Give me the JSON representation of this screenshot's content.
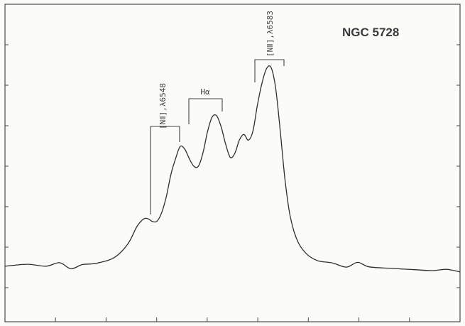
{
  "chart_data": {
    "type": "line",
    "title": "NGC 5728",
    "xlabel": "",
    "ylabel": "",
    "grid": false,
    "legend": "none",
    "axis_ticks": "unlabeled",
    "xlim": [
      0,
      100
    ],
    "ylim": [
      0,
      100
    ],
    "series": [
      {
        "values_note": "",
        "x": [
          0,
          5,
          9,
          12,
          14.5,
          17,
          20,
          24,
          27,
          29,
          30.5,
          31.5,
          32.5,
          33.5,
          34.5,
          35.5,
          36.5,
          37.5,
          38.5,
          39.5,
          40.5,
          41.5,
          42.5,
          43.5,
          44.5,
          45.5,
          46.5,
          47.5,
          48.5,
          49.5,
          50.5,
          51.5,
          52.5,
          53.5,
          54.5,
          55.5,
          56.5,
          57.5,
          58.5,
          59.5,
          60.5,
          61.5,
          62.5,
          63.5,
          64.5,
          65.5,
          67,
          69,
          72,
          75,
          77.5,
          80,
          85,
          90,
          94,
          97,
          100
        ],
        "values": [
          17.5,
          18.1,
          17.5,
          18.6,
          16.7,
          18.0,
          18.4,
          20.2,
          24.5,
          30.0,
          32.4,
          32.4,
          31.5,
          31.8,
          34.6,
          39.7,
          46.6,
          51.4,
          55.2,
          54.4,
          51.4,
          49.0,
          49.0,
          53.1,
          59.8,
          64.4,
          64.9,
          61.4,
          55.9,
          51.8,
          53.0,
          57.2,
          59.0,
          57.2,
          60.1,
          68.5,
          75.3,
          79.8,
          80.0,
          73.4,
          60.0,
          45.2,
          34.6,
          28.5,
          24.8,
          22.6,
          20.5,
          19.1,
          18.5,
          17.2,
          18.7,
          17.3,
          16.8,
          16.4,
          16.1,
          16.5,
          15.7
        ]
      }
    ],
    "annotations": [
      {
        "label": "[NⅡ],λ6548",
        "x": 31.5
      },
      {
        "label": "Hα",
        "x": 44.5
      },
      {
        "label": "[NⅡ],λ6583",
        "x": 58.5
      }
    ]
  }
}
